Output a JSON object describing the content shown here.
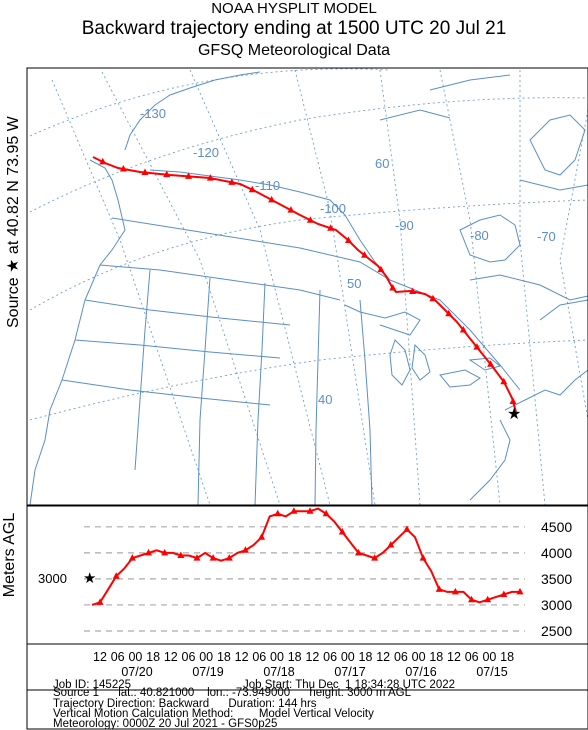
{
  "titles": {
    "line1": "NOAA HYSPLIT MODEL",
    "line2": "Backward trajectory ending at 1500 UTC 20 Jul 21",
    "line3": "GFSQ Meteorological Data"
  },
  "source_label": "Source ★ at 40.82 N 73.95 W",
  "meters_label": "Meters AGL",
  "source_height_label": "3000",
  "map": {
    "longitude_labels": [
      "-130",
      "-120",
      "-110",
      "-100",
      "-90",
      "-80",
      "-70"
    ],
    "latitude_labels": [
      "60",
      "50",
      "40"
    ],
    "trajectory_color": "#ff0000",
    "map_line_color": "#5a8fc8",
    "grid_color": "#6f9fd0"
  },
  "height_panel": {
    "y_ticks": [
      "4500",
      "4000",
      "3500",
      "3000",
      "2500"
    ],
    "hour_ticks": [
      "12",
      "06",
      "00",
      "18",
      "12",
      "06",
      "00",
      "18",
      "12",
      "06",
      "00",
      "18",
      "12",
      "06",
      "00",
      "18",
      "12",
      "06",
      "00",
      "18",
      "12",
      "06",
      "00",
      "18"
    ],
    "date_labels": [
      "07/20",
      "07/19",
      "07/18",
      "07/17",
      "07/16",
      "07/15"
    ]
  },
  "chart_data": {
    "type": "line",
    "title": "",
    "xlabel": "",
    "ylabel": "Meters AGL",
    "ylim": [
      2250,
      4900
    ],
    "x_direction": "backward hours from 1500 UTC 20 Jul 21",
    "series": [
      {
        "values": [
          3000,
          3050,
          3300,
          3550,
          3700,
          3900,
          3950,
          4000,
          4050,
          4000,
          4000,
          3950,
          3950,
          3900,
          4000,
          3900,
          3850,
          3900,
          4000,
          4050,
          4150,
          4300,
          4700,
          4750,
          4700,
          4800,
          4800,
          4800,
          4850,
          4750,
          4600,
          4400,
          4200,
          4000,
          3950,
          3900,
          4000,
          4150,
          4300,
          4450,
          4300,
          3900,
          3650,
          3300,
          3250,
          3250,
          3250,
          3100,
          3050,
          3100,
          3150,
          3200,
          3250,
          3250
        ]
      }
    ]
  },
  "info": {
    "job_id": "Job ID: 145225",
    "job_start": "Job Start: Thu Dec  1 18:34:28 UTC 2022",
    "source1": "Source 1      lat.: 40.821000    lon.: -73.949000      height: 3000 m AGL",
    "direction": "Trajectory Direction: Backward      Duration: 144 hrs",
    "vertical": "Vertical Motion Calculation Method:        Model Vertical Velocity",
    "meteorology": "Meteorology: 0000Z 20 Jul 2021 - GFS0p25"
  }
}
